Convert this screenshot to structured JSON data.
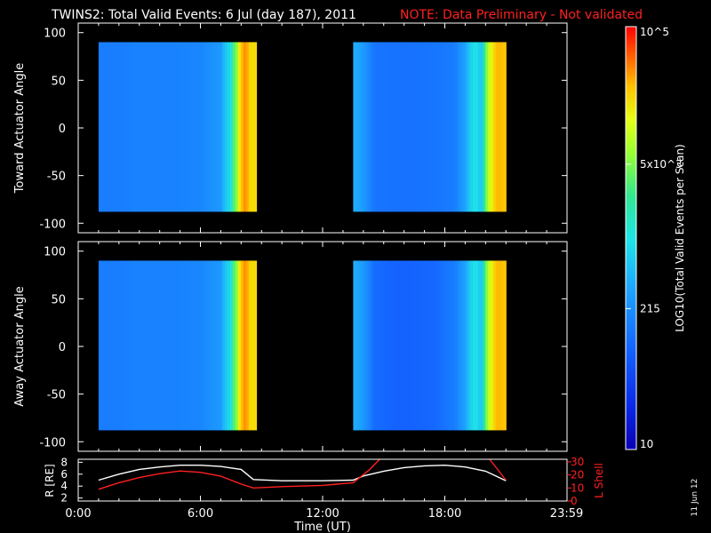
{
  "header": {
    "title": "TWINS2: Total Valid Events:  6 Jul (day 187), 2011",
    "note": "NOTE: Data Preliminary - Not validated"
  },
  "side_stamp": "11 Jun 12",
  "colorbar": {
    "label": "LOG10(Total Valid Events per Scan)",
    "tick_labels": [
      "10",
      "215",
      "5x10^3",
      "10^5"
    ],
    "tick_values": [
      10,
      215,
      5000,
      100000
    ],
    "range": [
      10,
      100000
    ],
    "scale": "log"
  },
  "chart_data": [
    {
      "type": "heatmap",
      "ylabel": "Toward Actuator Angle",
      "ylim": [
        -110,
        110
      ],
      "yticks": [
        "100",
        "50",
        "0",
        "-50",
        "-100"
      ],
      "ytick_values": [
        100,
        50,
        0,
        -50,
        -100
      ],
      "xlim_hours": [
        0,
        24
      ],
      "data_y_range": [
        -88,
        90
      ],
      "segments": [
        {
          "start": "1:00",
          "end": "8:45"
        },
        {
          "start": "13:30",
          "end": "21:00"
        }
      ],
      "profile_hours": [
        1.0,
        2.0,
        3.0,
        4.0,
        5.0,
        6.0,
        7.0,
        7.5,
        7.8,
        8.0,
        8.2,
        8.45
      ],
      "profile_counts": [
        150,
        150,
        170,
        170,
        170,
        180,
        260,
        900,
        6000,
        25000,
        40000,
        20000
      ],
      "profile_hours_2": [
        13.5,
        14.5,
        15.5,
        16.5,
        17.5,
        18.5,
        19.0,
        19.5,
        19.8,
        20.0,
        20.3,
        20.6,
        21.0
      ],
      "profile_counts_2": [
        400,
        130,
        120,
        120,
        130,
        150,
        300,
        1000,
        500,
        3000,
        15000,
        30000,
        25000
      ]
    },
    {
      "type": "heatmap",
      "ylabel": "Away Actuator Angle",
      "ylim": [
        -110,
        110
      ],
      "yticks": [
        "100",
        "50",
        "0",
        "-50",
        "-100"
      ],
      "ytick_values": [
        100,
        50,
        0,
        -50,
        -100
      ],
      "xlim_hours": [
        0,
        24
      ],
      "data_y_range": [
        -88,
        90
      ],
      "segments": [
        {
          "start": "1:00",
          "end": "8:45"
        },
        {
          "start": "13:30",
          "end": "21:00"
        }
      ],
      "profile_hours": [
        1.0,
        2.0,
        3.0,
        4.0,
        5.0,
        6.0,
        7.0,
        7.5,
        7.8,
        8.0,
        8.2,
        8.45
      ],
      "profile_counts": [
        150,
        150,
        170,
        170,
        170,
        180,
        260,
        900,
        6000,
        25000,
        40000,
        20000
      ],
      "profile_hours_2": [
        13.5,
        14.5,
        15.5,
        16.5,
        17.5,
        18.5,
        19.0,
        19.5,
        19.8,
        20.0,
        20.3,
        20.6,
        21.0
      ],
      "profile_counts_2": [
        400,
        110,
        90,
        90,
        100,
        150,
        300,
        1000,
        500,
        3000,
        15000,
        30000,
        25000
      ]
    },
    {
      "type": "line",
      "xlabel": "Time (UT)",
      "xticks": [
        "0:00",
        "6:00",
        "12:00",
        "18:00",
        "23:59"
      ],
      "xtick_hours": [
        0,
        6,
        12,
        18,
        23.98
      ],
      "left_axis": {
        "label": "R [RE]",
        "ticks": [
          "8",
          "6",
          "4",
          "2"
        ],
        "tick_values": [
          8,
          6,
          4,
          2
        ],
        "ylim": [
          1.5,
          8.5
        ]
      },
      "right_axis": {
        "label": "L Shell",
        "ticks": [
          "30",
          "20",
          "10",
          "0"
        ],
        "tick_values": [
          30,
          20,
          10,
          0
        ],
        "ylim": [
          0,
          32
        ],
        "color": "#ff2020"
      },
      "series": [
        {
          "axis": "left",
          "color": "#ffffff",
          "hours": [
            1.0,
            2.0,
            3.0,
            4.0,
            5.0,
            6.0,
            7.0,
            8.0,
            8.6,
            10.0,
            12.0,
            13.5,
            14.0,
            15.0,
            16.0,
            17.0,
            18.0,
            19.0,
            20.0,
            20.5,
            21.0
          ],
          "values": [
            5.0,
            6.0,
            6.8,
            7.2,
            7.5,
            7.5,
            7.3,
            6.8,
            5.1,
            4.9,
            4.9,
            5.0,
            5.7,
            6.5,
            7.1,
            7.4,
            7.5,
            7.2,
            6.5,
            5.7,
            4.9
          ]
        },
        {
          "axis": "right",
          "color": "#ff2020",
          "hours": [
            1.0,
            2.0,
            3.0,
            4.0,
            5.0,
            6.0,
            7.0,
            8.0,
            8.6,
            10.0,
            12.0,
            13.5,
            14.3,
            14.8
          ],
          "values": [
            9,
            14,
            18,
            21,
            23,
            22,
            19,
            13,
            10,
            11,
            12,
            14,
            24,
            32
          ]
        },
        {
          "axis": "right",
          "color": "#ff2020",
          "hours": [
            20.2,
            21.0
          ],
          "values": [
            32,
            16
          ]
        }
      ]
    }
  ]
}
